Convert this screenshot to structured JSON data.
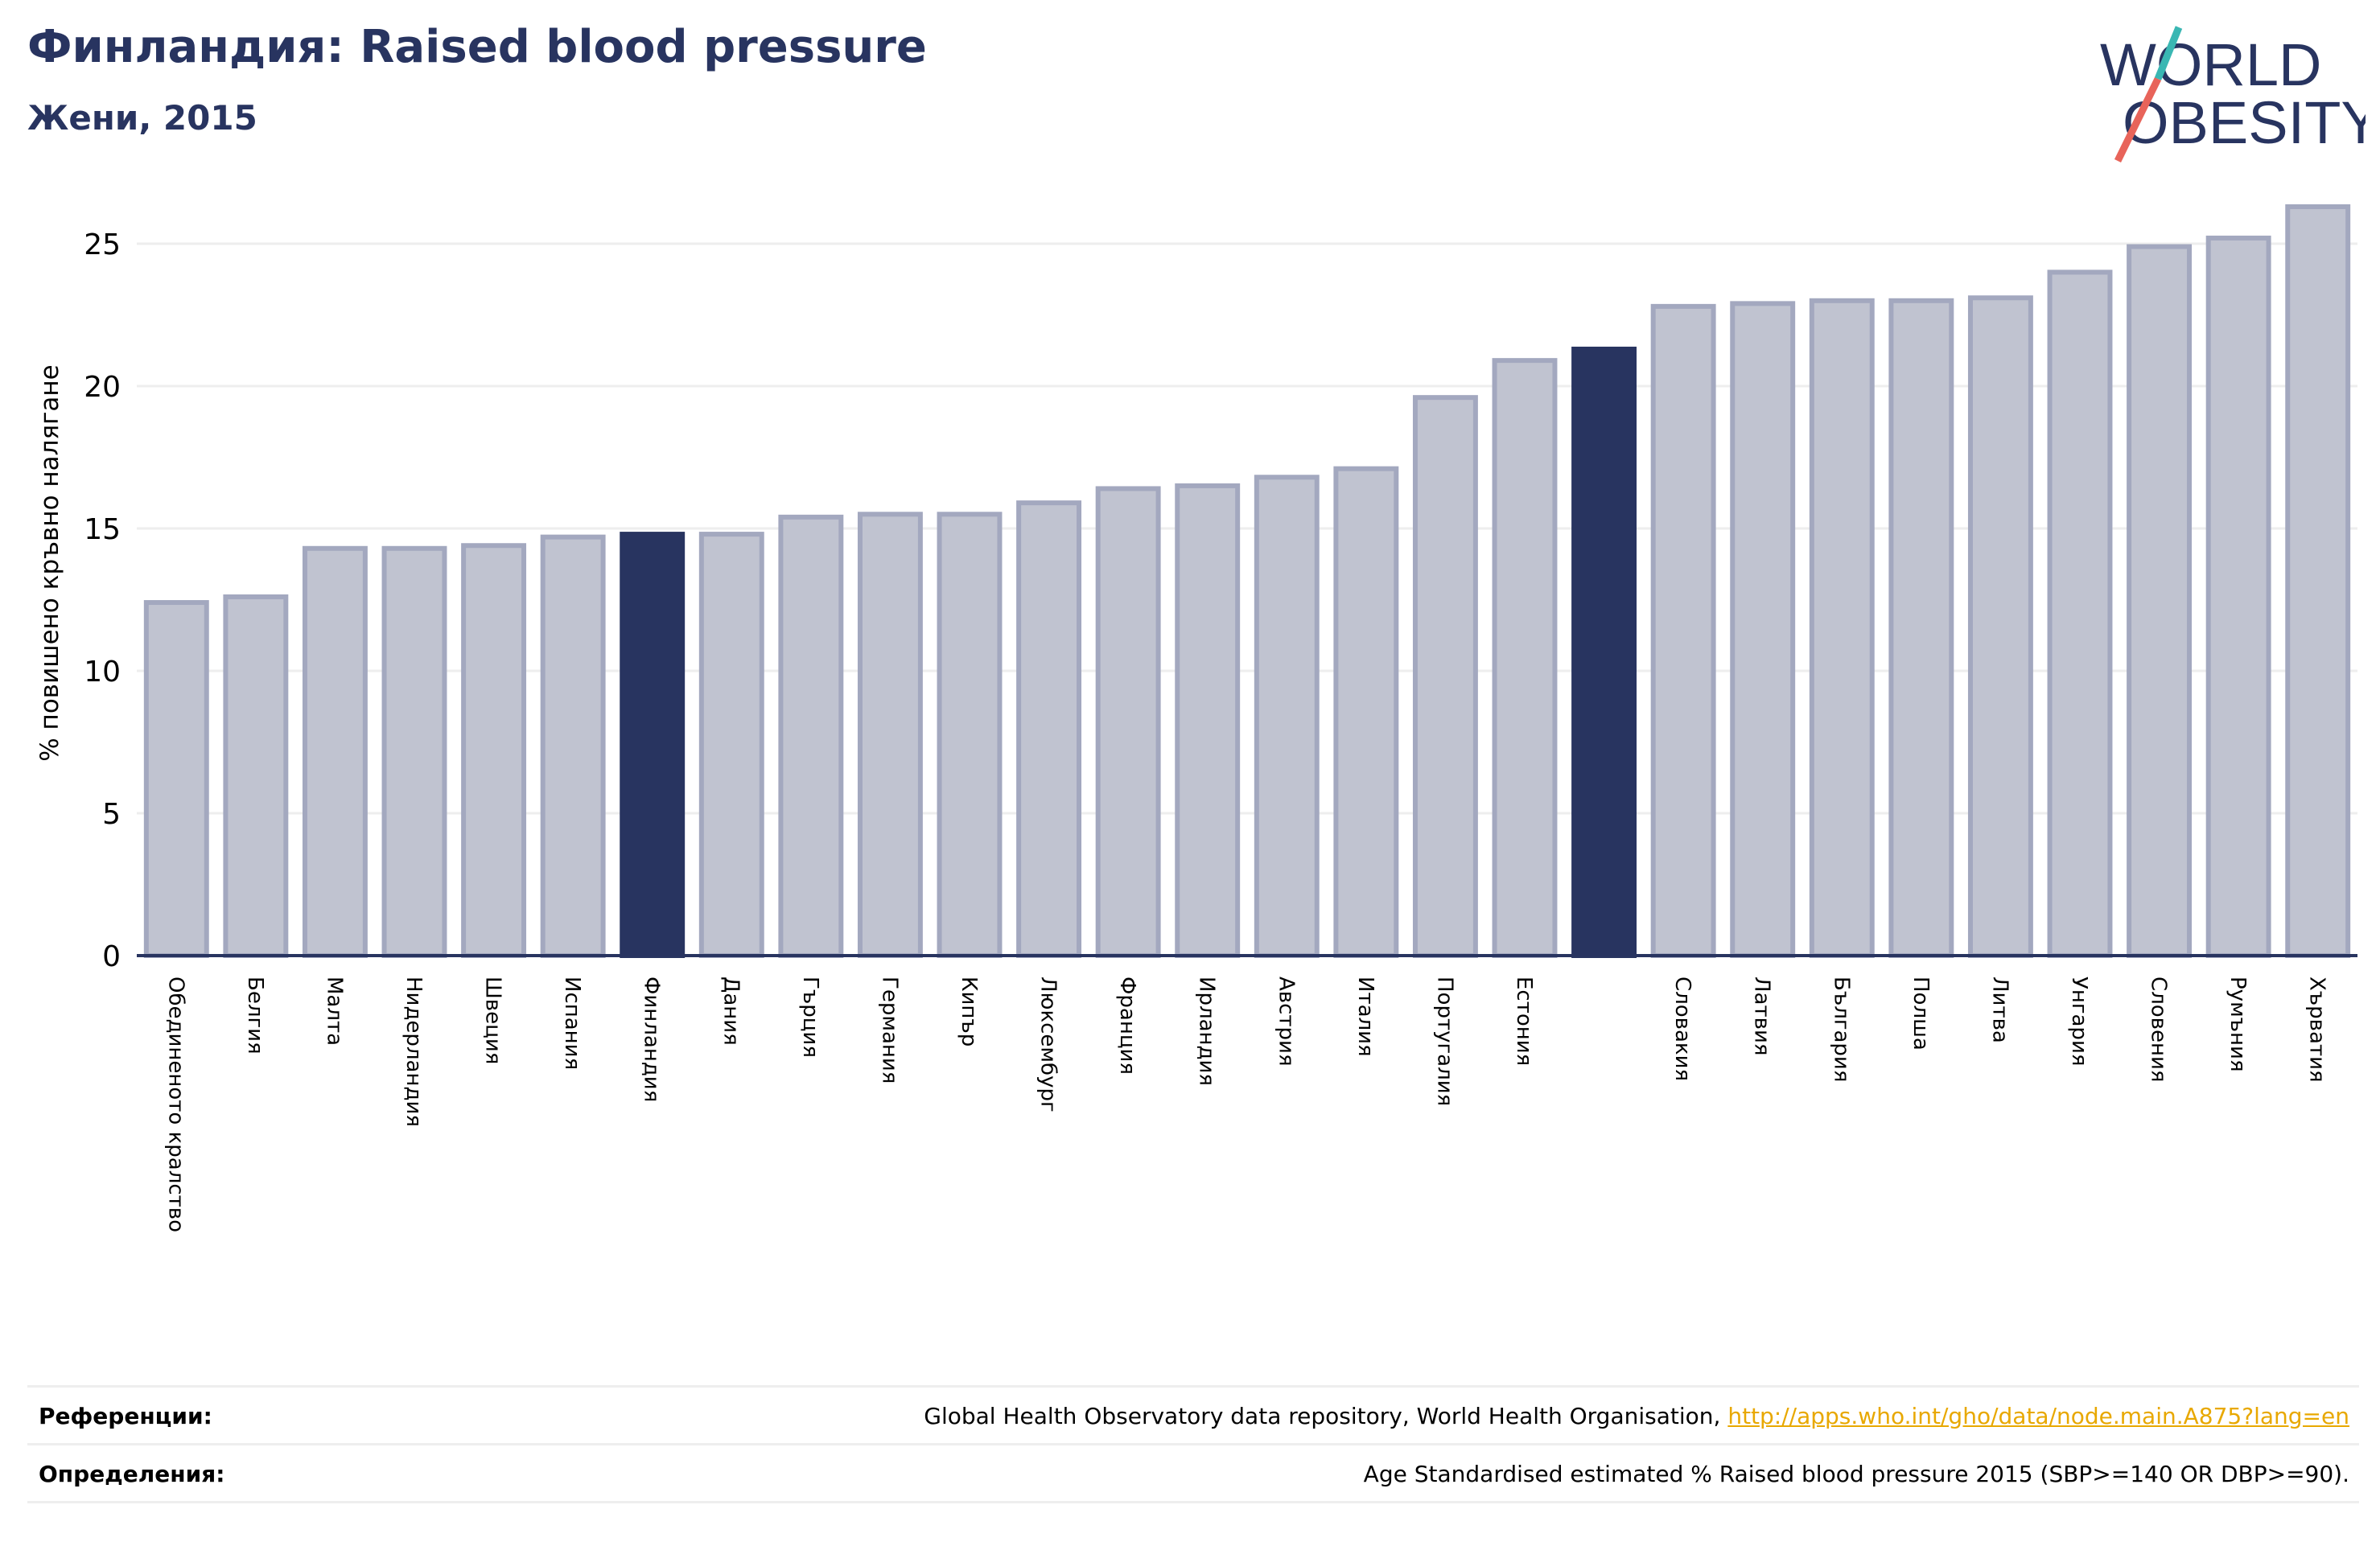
{
  "header": {
    "title": "Финландия: Raised blood pressure",
    "subtitle": "Жени, 2015"
  },
  "logo": {
    "line1": "WORLD",
    "line2": "OBESITY",
    "colors": {
      "text": "#283460",
      "slash_red": "#e8645a",
      "slash_teal": "#3ab7b3"
    }
  },
  "chart_data": {
    "type": "bar",
    "title": "Финландия: Raised blood pressure",
    "subtitle": "Жени, 2015",
    "ylabel": "% повишено кръвно налягане",
    "xlabel": "",
    "ylim": [
      0,
      27
    ],
    "yticks": [
      0,
      5,
      10,
      15,
      20,
      25
    ],
    "grid": true,
    "categories": [
      "Обединеното кралство",
      "Белгия",
      "Малта",
      "Нидерландия",
      "Швеция",
      "Испания",
      "Финландия",
      "Дания",
      "Гърция",
      "Германия",
      "Кипър",
      "Люксембург",
      "Франция",
      "Ирландия",
      "Австрия",
      "Италия",
      "Португалия",
      "Естония",
      "",
      "Словакия",
      "Латвия",
      "България",
      "Полша",
      "Литва",
      "Унгария",
      "Словения",
      "Румъния",
      "Хърватия"
    ],
    "values": [
      12.4,
      12.6,
      14.3,
      14.3,
      14.4,
      14.7,
      14.8,
      14.8,
      15.4,
      15.5,
      15.5,
      15.9,
      16.4,
      16.5,
      16.8,
      17.1,
      19.6,
      20.9,
      21.3,
      22.8,
      22.9,
      23.0,
      23.0,
      23.1,
      24.0,
      24.9,
      25.2,
      26.3
    ],
    "highlight_indices": [
      6,
      18
    ],
    "colors": {
      "bar": "#c0c3d0",
      "bar_edge": "#a3a8bf",
      "highlight": "#283460",
      "grid": "#eeeeee",
      "axis": "#283460"
    }
  },
  "footer": {
    "references_label": "Референции:",
    "references_text": "Global Health Observatory data repository, World Health Organisation, ",
    "references_link": "http://apps.who.int/gho/data/node.main.A875?lang=en",
    "definitions_label": "Определения:",
    "definitions_text": "Age Standardised estimated % Raised blood pressure 2015 (SBP>=140 OR DBP>=90)."
  }
}
